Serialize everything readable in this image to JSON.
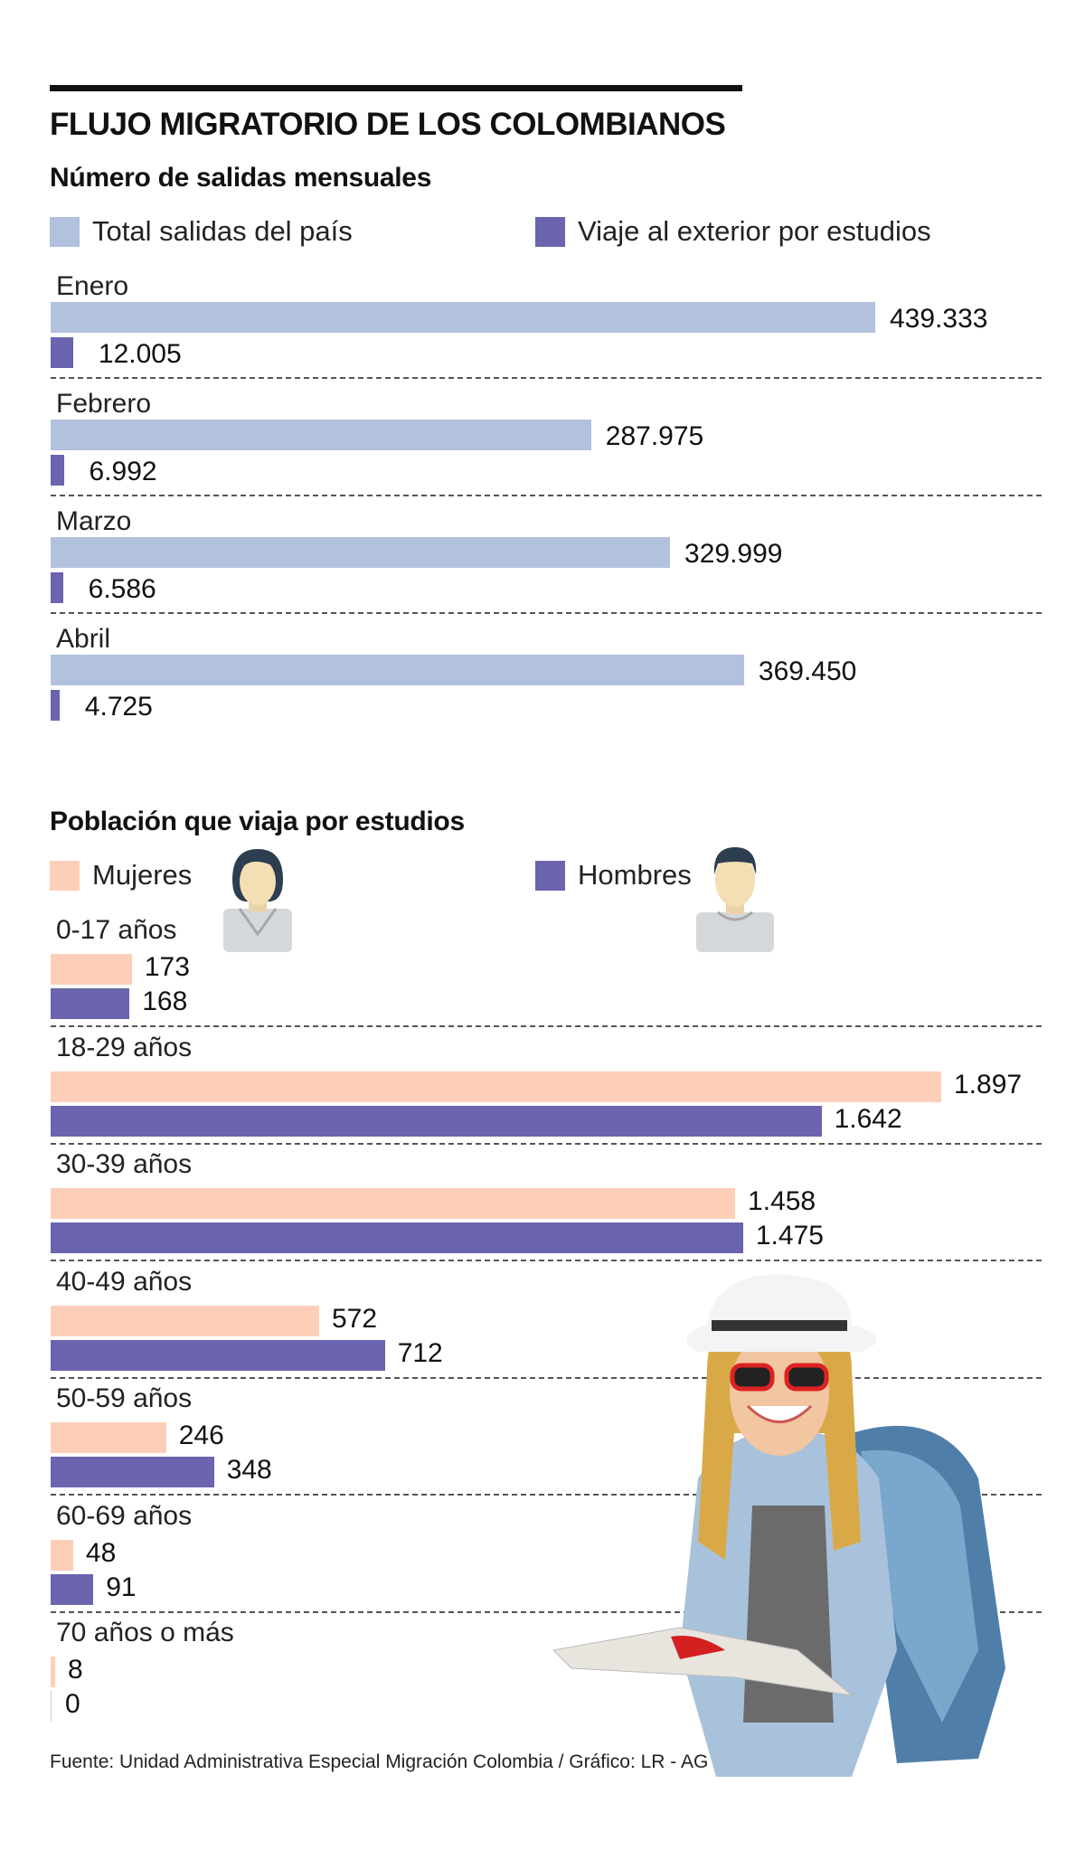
{
  "title": "FLUJO MIGRATORIO DE LOS COLOMBIANOS",
  "footer": "Fuente: Unidad Administrativa Especial Migración Colombia / Gráfico: LR - AG",
  "colors": {
    "total": "#b1c1de",
    "estudios": "#6b64ae",
    "mujeres": "#fdcfb8",
    "hombres": "#6b64ae"
  },
  "icons": {
    "female": "female-avatar-icon",
    "male": "male-avatar-icon",
    "photo": "traveler-photo"
  },
  "chart_data": [
    {
      "type": "bar",
      "orientation": "horizontal",
      "title": "Número de salidas mensuales",
      "categories": [
        "Enero",
        "Febrero",
        "Marzo",
        "Abril"
      ],
      "series": [
        {
          "name": "Total salidas del país",
          "values": [
            439333,
            287975,
            329999,
            369450
          ],
          "labels": [
            "439.333",
            "287.975",
            "329.999",
            "369.450"
          ]
        },
        {
          "name": "Viaje al exterior por estudios",
          "values": [
            12005,
            6992,
            6586,
            4725
          ],
          "labels": [
            "12.005",
            "6.992",
            "6.586",
            "4.725"
          ]
        }
      ],
      "xlabel": "",
      "ylabel": "",
      "grid": false,
      "legend": "top"
    },
    {
      "type": "bar",
      "orientation": "horizontal",
      "title": "Población que viaja por estudios",
      "categories": [
        "0-17 años",
        "18-29 años",
        "30-39 años",
        "40-49 años",
        "50-59 años",
        "60-69 años",
        "70 años o más"
      ],
      "series": [
        {
          "name": "Mujeres",
          "values": [
            173,
            1897,
            1458,
            572,
            246,
            48,
            8
          ],
          "labels": [
            "173",
            "1.897",
            "1.458",
            "572",
            "246",
            "48",
            "8"
          ]
        },
        {
          "name": "Hombres",
          "values": [
            168,
            1642,
            1475,
            712,
            348,
            91,
            0
          ],
          "labels": [
            "168",
            "1.642",
            "1.475",
            "712",
            "348",
            "91",
            "0"
          ]
        }
      ],
      "xlabel": "",
      "ylabel": "",
      "grid": false,
      "legend": "top"
    }
  ]
}
